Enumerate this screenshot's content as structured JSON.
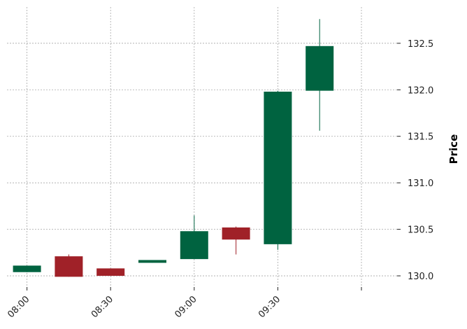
{
  "chart_data": {
    "type": "candlestick",
    "title": "",
    "xlabel": "",
    "ylabel": "Price",
    "ylim": [
      129.88,
      132.89
    ],
    "y_ticks": [
      130.0,
      130.5,
      131.0,
      131.5,
      132.0,
      132.5
    ],
    "y_tick_labels": [
      "130.0",
      "130.5",
      "131.0",
      "131.5",
      "132.0",
      "132.5"
    ],
    "x_ticks": [
      "08:00",
      "08:30",
      "09:00",
      "09:30",
      ""
    ],
    "grid": true,
    "x_times": [
      "08:00",
      "08:15",
      "08:30",
      "08:45",
      "09:00",
      "09:15",
      "09:30",
      "09:45"
    ],
    "series": [
      {
        "open": [
          130.04,
          130.21,
          130.08,
          130.14,
          130.18,
          130.52,
          130.34,
          131.99
        ],
        "high": [
          130.11,
          130.23,
          130.08,
          130.17,
          130.65,
          130.53,
          131.99,
          132.76
        ],
        "low": [
          130.04,
          129.99,
          130.0,
          130.14,
          130.18,
          130.23,
          130.28,
          131.56
        ],
        "close": [
          130.11,
          129.99,
          130.0,
          130.17,
          130.48,
          130.39,
          131.98,
          132.47
        ]
      }
    ],
    "colors": {
      "up": "#006340",
      "down": "#a02128",
      "grid": "#a6a6a6",
      "axis": "#222222"
    }
  }
}
